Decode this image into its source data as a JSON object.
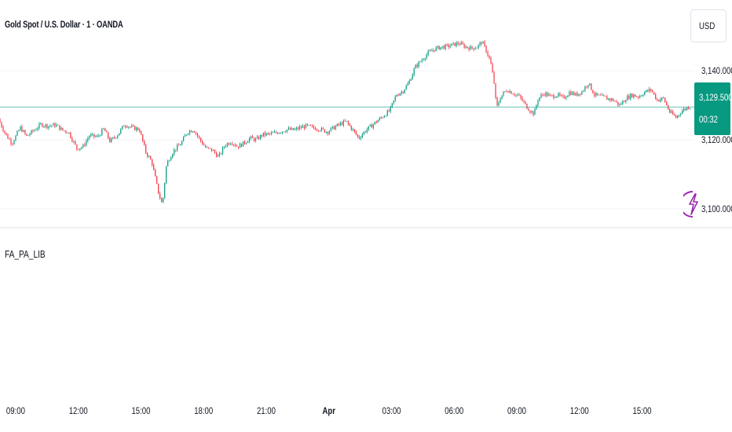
{
  "header": {
    "symbol_title": "Gold Spot / U.S. Dollar · 1 · OANDA",
    "currency": "USD"
  },
  "price_scale": {
    "current_price": "3,129.500",
    "countdown": "00:32"
  },
  "indicator": {
    "name": "FA_PA_LIB"
  },
  "colors": {
    "up": "#089981",
    "down": "#f23645",
    "last_price_line": "#089981",
    "grid": "#f0f3fa",
    "bolt": "#9c27b0"
  },
  "chart_data": {
    "type": "candlestick",
    "title": "Gold Spot / U.S. Dollar · 1 · OANDA",
    "y_axis_ticks": [
      {
        "value": 3140,
        "label": "3,140.000"
      },
      {
        "value": 3120,
        "label": "3,120.000"
      },
      {
        "value": 3100,
        "label": "3,100.000"
      }
    ],
    "ylim": [
      3094.5,
      3160.5
    ],
    "x_axis_ticks": [
      {
        "label": "09:00",
        "hours": 0
      },
      {
        "label": "12:00",
        "hours": 3
      },
      {
        "label": "15:00",
        "hours": 6
      },
      {
        "label": "18:00",
        "hours": 9
      },
      {
        "label": "21:00",
        "hours": 12
      },
      {
        "label": "Apr",
        "hours": 15,
        "bold": true
      },
      {
        "label": "03:00",
        "hours": 18
      },
      {
        "label": "06:00",
        "hours": 21
      },
      {
        "label": "09:00",
        "hours": 24
      },
      {
        "label": "12:00",
        "hours": 27
      },
      {
        "label": "15:00",
        "hours": 30
      }
    ],
    "xlim_hours": [
      -0.75,
      32.5
    ],
    "price_path": [
      [
        -0.75,
        3126.0
      ],
      [
        -0.4,
        3121.5
      ],
      [
        -0.1,
        3119.0
      ],
      [
        0.3,
        3123.5
      ],
      [
        0.6,
        3121.0
      ],
      [
        1.0,
        3123.0
      ],
      [
        1.3,
        3124.5
      ],
      [
        1.6,
        3124.0
      ],
      [
        2.0,
        3124.3
      ],
      [
        2.3,
        3122.8
      ],
      [
        2.6,
        3122.3
      ],
      [
        3.0,
        3117.5
      ],
      [
        3.3,
        3118.0
      ],
      [
        3.6,
        3121.2
      ],
      [
        4.0,
        3120.8
      ],
      [
        4.3,
        3123.2
      ],
      [
        4.6,
        3119.5
      ],
      [
        5.0,
        3121.8
      ],
      [
        5.3,
        3124.5
      ],
      [
        5.6,
        3123.6
      ],
      [
        6.0,
        3123.0
      ],
      [
        6.3,
        3116.5
      ],
      [
        6.6,
        3113.5
      ],
      [
        6.9,
        3105.0
      ],
      [
        7.1,
        3101.0
      ],
      [
        7.3,
        3113.0
      ],
      [
        7.6,
        3116.5
      ],
      [
        8.0,
        3119.0
      ],
      [
        8.3,
        3122.3
      ],
      [
        8.6,
        3123.0
      ],
      [
        8.9,
        3120.0
      ],
      [
        9.2,
        3117.5
      ],
      [
        9.5,
        3117.0
      ],
      [
        9.8,
        3115.0
      ],
      [
        10.1,
        3118.5
      ],
      [
        10.4,
        3119.5
      ],
      [
        10.7,
        3118.0
      ],
      [
        11.0,
        3119.0
      ],
      [
        11.3,
        3120.5
      ],
      [
        11.6,
        3120.0
      ],
      [
        11.9,
        3121.5
      ],
      [
        12.2,
        3121.6
      ],
      [
        12.5,
        3122.0
      ],
      [
        12.8,
        3122.5
      ],
      [
        13.1,
        3123.0
      ],
      [
        13.4,
        3122.8
      ],
      [
        13.7,
        3123.5
      ],
      [
        14.0,
        3124.0
      ],
      [
        14.3,
        3123.5
      ],
      [
        14.6,
        3123.2
      ],
      [
        15.0,
        3122.3
      ],
      [
        15.3,
        3123.5
      ],
      [
        15.6,
        3124.5
      ],
      [
        15.9,
        3125.3
      ],
      [
        16.2,
        3123.0
      ],
      [
        16.5,
        3120.5
      ],
      [
        16.8,
        3122.5
      ],
      [
        17.1,
        3124.0
      ],
      [
        17.4,
        3125.5
      ],
      [
        17.7,
        3127.0
      ],
      [
        18.0,
        3128.5
      ],
      [
        18.3,
        3133.0
      ],
      [
        18.6,
        3134.0
      ],
      [
        18.9,
        3136.5
      ],
      [
        19.2,
        3141.0
      ],
      [
        19.5,
        3143.0
      ],
      [
        19.8,
        3145.0
      ],
      [
        20.1,
        3146.2
      ],
      [
        20.4,
        3146.8
      ],
      [
        20.7,
        3147.0
      ],
      [
        21.0,
        3147.5
      ],
      [
        21.3,
        3148.0
      ],
      [
        21.6,
        3147.0
      ],
      [
        21.9,
        3146.5
      ],
      [
        22.2,
        3147.0
      ],
      [
        22.4,
        3148.5
      ],
      [
        22.6,
        3146.0
      ],
      [
        22.8,
        3143.0
      ],
      [
        23.0,
        3136.0
      ],
      [
        23.1,
        3129.0
      ],
      [
        23.3,
        3132.5
      ],
      [
        23.6,
        3134.5
      ],
      [
        23.9,
        3133.5
      ],
      [
        24.2,
        3132.5
      ],
      [
        24.5,
        3130.0
      ],
      [
        24.7,
        3128.5
      ],
      [
        24.9,
        3127.5
      ],
      [
        25.1,
        3132.0
      ],
      [
        25.4,
        3133.5
      ],
      [
        25.7,
        3132.5
      ],
      [
        26.0,
        3133.0
      ],
      [
        26.3,
        3132.0
      ],
      [
        26.6,
        3133.8
      ],
      [
        26.9,
        3133.0
      ],
      [
        27.2,
        3134.0
      ],
      [
        27.5,
        3136.5
      ],
      [
        27.8,
        3133.0
      ],
      [
        28.1,
        3132.5
      ],
      [
        28.4,
        3132.0
      ],
      [
        28.7,
        3131.5
      ],
      [
        29.0,
        3130.0
      ],
      [
        29.3,
        3132.0
      ],
      [
        29.6,
        3133.0
      ],
      [
        29.9,
        3132.5
      ],
      [
        30.2,
        3133.8
      ],
      [
        30.5,
        3134.5
      ],
      [
        30.8,
        3131.5
      ],
      [
        31.1,
        3132.0
      ],
      [
        31.4,
        3128.0
      ],
      [
        31.7,
        3126.5
      ],
      [
        32.0,
        3128.5
      ],
      [
        32.3,
        3129.5
      ]
    ],
    "last_price": 3129.5,
    "low_point": {
      "hours": 7.1,
      "price": 3101.0
    },
    "high_point": {
      "hours": 22.4,
      "price": 3148.5
    }
  }
}
